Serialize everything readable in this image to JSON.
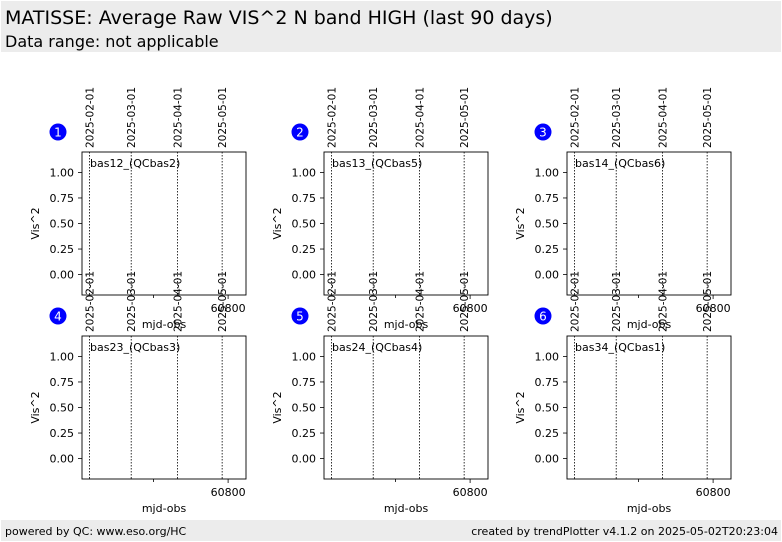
{
  "header": {
    "title": "MATISSE: Average Raw VIS^2 N band HIGH (last 90 days)",
    "subtitle": "Data range: not applicable"
  },
  "footer": {
    "left": "powered by QC: www.eso.org/HC",
    "right": "created by trendPlotter v4.1.2 on 2025-05-02T20:23:04"
  },
  "colors": {
    "badge": "#0000ff",
    "header_bg": "#ececec"
  },
  "chart_data": [
    {
      "type": "line",
      "badge": "1",
      "label": "bas12_(QCbas2)",
      "xlabel": "mjd-obs",
      "ylabel": "Vis^2",
      "xlim": [
        60702,
        60812
      ],
      "ylim": [
        -0.2,
        1.2
      ],
      "yticks": [
        0.0,
        0.25,
        0.5,
        0.75,
        1.0
      ],
      "ytick_labels": [
        "0.00",
        "0.25",
        "0.50",
        "0.75",
        "1.00"
      ],
      "xticks": [
        60800
      ],
      "xtick_labels": [
        "60800"
      ],
      "date_ticks": [
        {
          "mjd": 60707,
          "label": "2025-02-01"
        },
        {
          "mjd": 60735,
          "label": "2025-03-01"
        },
        {
          "mjd": 60766,
          "label": "2025-04-01"
        },
        {
          "mjd": 60796,
          "label": "2025-05-01"
        }
      ],
      "series": []
    },
    {
      "type": "line",
      "badge": "2",
      "label": "bas13_(QCbas5)",
      "xlabel": "mjd-obs",
      "ylabel": "Vis^2",
      "xlim": [
        60702,
        60812
      ],
      "ylim": [
        -0.2,
        1.2
      ],
      "yticks": [
        0.0,
        0.25,
        0.5,
        0.75,
        1.0
      ],
      "ytick_labels": [
        "0.00",
        "0.25",
        "0.50",
        "0.75",
        "1.00"
      ],
      "xticks": [
        60800
      ],
      "xtick_labels": [
        "60800"
      ],
      "date_ticks": [
        {
          "mjd": 60707,
          "label": "2025-02-01"
        },
        {
          "mjd": 60735,
          "label": "2025-03-01"
        },
        {
          "mjd": 60766,
          "label": "2025-04-01"
        },
        {
          "mjd": 60796,
          "label": "2025-05-01"
        }
      ],
      "series": []
    },
    {
      "type": "line",
      "badge": "3",
      "label": "bas14_(QCbas6)",
      "xlabel": "mjd-obs",
      "ylabel": "Vis^2",
      "xlim": [
        60702,
        60812
      ],
      "ylim": [
        -0.2,
        1.2
      ],
      "yticks": [
        0.0,
        0.25,
        0.5,
        0.75,
        1.0
      ],
      "ytick_labels": [
        "0.00",
        "0.25",
        "0.50",
        "0.75",
        "1.00"
      ],
      "xticks": [
        60800
      ],
      "xtick_labels": [
        "60800"
      ],
      "date_ticks": [
        {
          "mjd": 60707,
          "label": "2025-02-01"
        },
        {
          "mjd": 60735,
          "label": "2025-03-01"
        },
        {
          "mjd": 60766,
          "label": "2025-04-01"
        },
        {
          "mjd": 60796,
          "label": "2025-05-01"
        }
      ],
      "series": []
    },
    {
      "type": "line",
      "badge": "4",
      "label": "bas23_(QCbas3)",
      "xlabel": "mjd-obs",
      "ylabel": "Vis^2",
      "xlim": [
        60702,
        60812
      ],
      "ylim": [
        -0.2,
        1.2
      ],
      "yticks": [
        0.0,
        0.25,
        0.5,
        0.75,
        1.0
      ],
      "ytick_labels": [
        "0.00",
        "0.25",
        "0.50",
        "0.75",
        "1.00"
      ],
      "xticks": [
        60800
      ],
      "xtick_labels": [
        "60800"
      ],
      "date_ticks": [
        {
          "mjd": 60707,
          "label": "2025-02-01"
        },
        {
          "mjd": 60735,
          "label": "2025-03-01"
        },
        {
          "mjd": 60766,
          "label": "2025-04-01"
        },
        {
          "mjd": 60796,
          "label": "2025-05-01"
        }
      ],
      "series": []
    },
    {
      "type": "line",
      "badge": "5",
      "label": "bas24_(QCbas4)",
      "xlabel": "mjd-obs",
      "ylabel": "Vis^2",
      "xlim": [
        60702,
        60812
      ],
      "ylim": [
        -0.2,
        1.2
      ],
      "yticks": [
        0.0,
        0.25,
        0.5,
        0.75,
        1.0
      ],
      "ytick_labels": [
        "0.00",
        "0.25",
        "0.50",
        "0.75",
        "1.00"
      ],
      "xticks": [
        60800
      ],
      "xtick_labels": [
        "60800"
      ],
      "date_ticks": [
        {
          "mjd": 60707,
          "label": "2025-02-01"
        },
        {
          "mjd": 60735,
          "label": "2025-03-01"
        },
        {
          "mjd": 60766,
          "label": "2025-04-01"
        },
        {
          "mjd": 60796,
          "label": "2025-05-01"
        }
      ],
      "series": []
    },
    {
      "type": "line",
      "badge": "6",
      "label": "bas34_(QCbas1)",
      "xlabel": "mjd-obs",
      "ylabel": "Vis^2",
      "xlim": [
        60702,
        60812
      ],
      "ylim": [
        -0.2,
        1.2
      ],
      "yticks": [
        0.0,
        0.25,
        0.5,
        0.75,
        1.0
      ],
      "ytick_labels": [
        "0.00",
        "0.25",
        "0.50",
        "0.75",
        "1.00"
      ],
      "xticks": [
        60800
      ],
      "xtick_labels": [
        "60800"
      ],
      "date_ticks": [
        {
          "mjd": 60707,
          "label": "2025-02-01"
        },
        {
          "mjd": 60735,
          "label": "2025-03-01"
        },
        {
          "mjd": 60766,
          "label": "2025-04-01"
        },
        {
          "mjd": 60796,
          "label": "2025-05-01"
        }
      ],
      "series": []
    }
  ]
}
